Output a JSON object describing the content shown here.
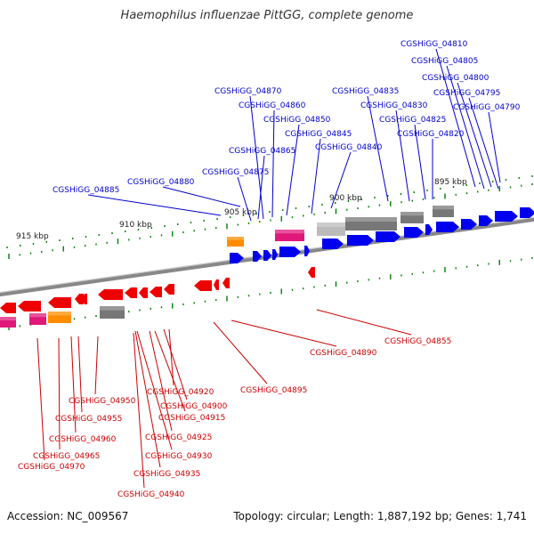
{
  "title": "Haemophilus influenzae PittGG, complete genome",
  "footer": {
    "accession": "Accession: NC_009567",
    "topology": "Topology: circular; Length: 1,887,192 bp; Genes: 1,741"
  },
  "colors": {
    "forward_gene": "#0000ee",
    "reverse_gene": "#ee0000",
    "rna_gene": "#ff8c00",
    "pseudogene": "#e0187a",
    "other_feature": "#777777",
    "backbone": "#888888",
    "ticks": "#008000",
    "forward_label": "#0000cc",
    "reverse_label": "#cc0000"
  },
  "scale_labels": [
    "915 kbp",
    "910 kbp",
    "905 kbp",
    "900 kbp",
    "895 kbp"
  ],
  "forward_genes": [
    "CGSHiGG_04810",
    "CGSHiGG_04805",
    "CGSHiGG_04800",
    "CGSHiGG_04795",
    "CGSHiGG_04790",
    "CGSHiGG_04835",
    "CGSHiGG_04830",
    "CGSHiGG_04825",
    "CGSHiGG_04820",
    "CGSHiGG_04870",
    "CGSHiGG_04860",
    "CGSHiGG_04850",
    "CGSHiGG_04845",
    "CGSHiGG_04865",
    "CGSHiGG_04840",
    "CGSHiGG_04875",
    "CGSHiGG_04880",
    "CGSHiGG_04885"
  ],
  "reverse_genes": [
    "CGSHiGG_04855",
    "CGSHiGG_04890",
    "CGSHiGG_04895",
    "CGSHiGG_04920",
    "CGSHiGG_04900",
    "CGSHiGG_04950",
    "CGSHiGG_04915",
    "CGSHiGG_04955",
    "CGSHiGG_04925",
    "CGSHiGG_04960",
    "CGSHiGG_04930",
    "CGSHiGG_04965",
    "CGSHiGG_04935",
    "CGSHiGG_04970",
    "CGSHiGG_04940"
  ]
}
